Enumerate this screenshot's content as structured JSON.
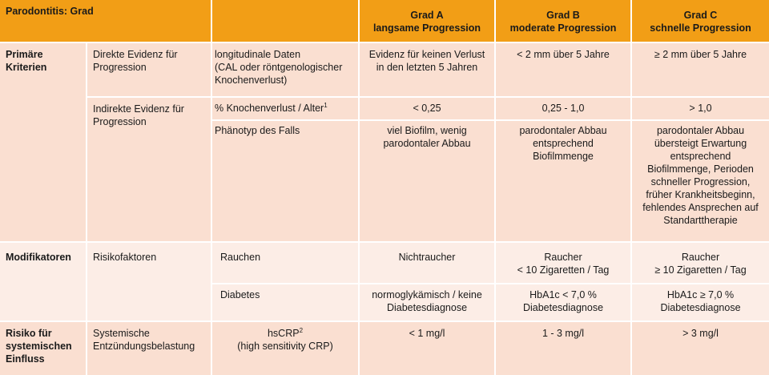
{
  "header": {
    "title": "Parodontitis: Grad",
    "empty": "",
    "grad_a": "Grad A\nlangsame Progression",
    "grad_b": "Grad B\nmoderate Progression",
    "grad_c": "Grad C\nschnelle Progression"
  },
  "primary": {
    "label": "Primäre\nKriterien",
    "direct": {
      "label": "Direkte Evidenz für\nProgression",
      "measure": "longitudinale Daten\n(CAL oder röntgenologischer\nKnochenverlust)",
      "a": "Evidenz für keinen Verlust\nin den letzten 5 Jahren",
      "b": "< 2 mm über 5 Jahre",
      "c": "≥ 2 mm über 5 Jahre"
    },
    "indirect": {
      "label": "Indirekte Evidenz für\nProgression",
      "bone_loss": {
        "measure": "% Knochenverlust / Alter",
        "footnote": "1",
        "a": "< 0,25",
        "b": "0,25 - 1,0",
        "c": "> 1,0"
      },
      "phenotype": {
        "measure": "Phänotyp des Falls",
        "a": "viel Biofilm, wenig\nparodontaler Abbau",
        "b": "parodontaler Abbau\nentsprechend\nBiofilmmenge",
        "c": "parodontaler Abbau\nübersteigt Erwartung\nentsprechend\nBiofilmmenge, Perioden\nschneller Progression,\nfrüher Krankheitsbeginn,\nfehlendes Ansprechen auf\nStandarttherapie"
      }
    }
  },
  "modifiers": {
    "label": "Modifikatoren",
    "sub": "Risikofaktoren",
    "smoking": {
      "measure": "Rauchen",
      "a": "Nichtraucher",
      "b": "Raucher\n< 10 Zigaretten / Tag",
      "c": "Raucher\n≥ 10 Zigaretten / Tag"
    },
    "diabetes": {
      "measure": "Diabetes",
      "a": "normoglykämisch / keine\nDiabetesdiagnose",
      "b": "HbA1c < 7,0 %\nDiabetesdiagnose",
      "c": "HbA1c ≥ 7,0 %\nDiabetesdiagnose"
    }
  },
  "risk": {
    "label": "Risiko für\nsystemischen\nEinfluss",
    "sub": "Systemische\nEntzündungsbelastung",
    "measure": "hsCRP",
    "footnote": "2",
    "measure_note": "(high sensitivity CRP)",
    "a": "< 1 mg/l",
    "b": "1 - 3 mg/l",
    "c": "> 3 mg/l"
  },
  "colors": {
    "header": "#F29E16",
    "primary_bg": "#FADFD1",
    "modifier_bg": "#FCEDE6"
  }
}
